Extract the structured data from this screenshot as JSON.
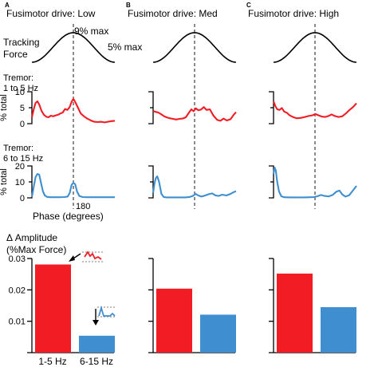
{
  "chart_data": [
    {
      "type": "line",
      "panels": [
        {
          "letter": "A",
          "title": "Fusimotor drive: Low",
          "tracking_label": [
            "Tracking",
            "Force"
          ],
          "force_max_label": "9% max",
          "force_min_label": "5% max",
          "low_band_label": [
            "Tremor:",
            "1 to 5 Hz"
          ],
          "high_band_label": [
            "Tremor:",
            "6 to 15 Hz"
          ],
          "ylabel": "% total",
          "low_ticks": [
            "0",
            "5",
            "10"
          ],
          "high_ticks": [
            "0",
            "10",
            "20"
          ],
          "x_tick_label": "180",
          "xlabel": "Phase (degrees)",
          "low_band": [
            [
              0,
              2.0
            ],
            [
              8,
              4.5
            ],
            [
              16,
              6.5
            ],
            [
              24,
              7.0
            ],
            [
              32,
              6.0
            ],
            [
              42,
              4.0
            ],
            [
              52,
              2.8
            ],
            [
              62,
              2.2
            ],
            [
              72,
              2.0
            ],
            [
              82,
              2.5
            ],
            [
              92,
              2.3
            ],
            [
              104,
              2.6
            ],
            [
              114,
              2.8
            ],
            [
              124,
              3.2
            ],
            [
              134,
              3.5
            ],
            [
              144,
              4.6
            ],
            [
              154,
              4.3
            ],
            [
              164,
              5.2
            ],
            [
              172,
              6.8
            ],
            [
              180,
              7.8
            ],
            [
              190,
              6.5
            ],
            [
              200,
              5.0
            ],
            [
              212,
              3.2
            ],
            [
              226,
              2.3
            ],
            [
              240,
              1.6
            ],
            [
              256,
              1.0
            ],
            [
              270,
              0.6
            ],
            [
              286,
              0.5
            ],
            [
              300,
              0.6
            ],
            [
              316,
              0.4
            ],
            [
              330,
              0.6
            ],
            [
              345,
              0.8
            ],
            [
              360,
              0.9
            ]
          ],
          "high_band": [
            [
              0,
              0.5
            ],
            [
              8,
              7
            ],
            [
              16,
              13
            ],
            [
              24,
              15
            ],
            [
              32,
              14.5
            ],
            [
              40,
              9
            ],
            [
              48,
              4
            ],
            [
              56,
              1.5
            ],
            [
              66,
              0.6
            ],
            [
              80,
              0.4
            ],
            [
              100,
              0.4
            ],
            [
              120,
              0.4
            ],
            [
              140,
              0.5
            ],
            [
              155,
              0.8
            ],
            [
              164,
              3
            ],
            [
              172,
              8
            ],
            [
              180,
              9.5
            ],
            [
              188,
              8.5
            ],
            [
              196,
              4
            ],
            [
              206,
              1.2
            ],
            [
              220,
              0.5
            ],
            [
              240,
              0.4
            ],
            [
              270,
              0.4
            ],
            [
              300,
              0.4
            ],
            [
              330,
              0.4
            ],
            [
              360,
              0.4
            ]
          ]
        },
        {
          "letter": "B",
          "title": "Fusimotor drive: Med",
          "low_band": [
            [
              0,
              4.0
            ],
            [
              10,
              3.7
            ],
            [
              22,
              3.5
            ],
            [
              34,
              3.0
            ],
            [
              46,
              2.4
            ],
            [
              58,
              2.0
            ],
            [
              72,
              1.7
            ],
            [
              86,
              1.5
            ],
            [
              100,
              1.3
            ],
            [
              114,
              1.5
            ],
            [
              128,
              1.6
            ],
            [
              142,
              2.0
            ],
            [
              156,
              3.5
            ],
            [
              166,
              4.5
            ],
            [
              176,
              3.9
            ],
            [
              186,
              4.8
            ],
            [
              196,
              4.2
            ],
            [
              208,
              4.4
            ],
            [
              220,
              5.2
            ],
            [
              232,
              4.3
            ],
            [
              246,
              4.5
            ],
            [
              262,
              2.5
            ],
            [
              278,
              1.2
            ],
            [
              292,
              0.9
            ],
            [
              306,
              1.6
            ],
            [
              320,
              1.0
            ],
            [
              336,
              1.4
            ],
            [
              350,
              2.8
            ],
            [
              360,
              3.6
            ]
          ],
          "high_band": [
            [
              0,
              3
            ],
            [
              6,
              9
            ],
            [
              12,
              12.5
            ],
            [
              18,
              13.5
            ],
            [
              26,
              10
            ],
            [
              36,
              2.5
            ],
            [
              46,
              0.5
            ],
            [
              60,
              0.3
            ],
            [
              80,
              0.3
            ],
            [
              110,
              0.3
            ],
            [
              140,
              0.3
            ],
            [
              160,
              0.6
            ],
            [
              172,
              1.2
            ],
            [
              184,
              2.5
            ],
            [
              196,
              1.5
            ],
            [
              210,
              0.8
            ],
            [
              226,
              1.5
            ],
            [
              242,
              2.3
            ],
            [
              256,
              2.8
            ],
            [
              270,
              1.6
            ],
            [
              284,
              1.2
            ],
            [
              300,
              2.0
            ],
            [
              318,
              1.5
            ],
            [
              336,
              2.5
            ],
            [
              350,
              3.6
            ],
            [
              360,
              4.2
            ]
          ]
        },
        {
          "letter": "C",
          "title": "Fusimotor drive: High",
          "low_band": [
            [
              0,
              7.0
            ],
            [
              8,
              5.5
            ],
            [
              16,
              4.5
            ],
            [
              26,
              4.3
            ],
            [
              36,
              4.9
            ],
            [
              46,
              3.8
            ],
            [
              58,
              3.4
            ],
            [
              70,
              2.6
            ],
            [
              84,
              2.1
            ],
            [
              100,
              1.7
            ],
            [
              118,
              1.8
            ],
            [
              136,
              2.1
            ],
            [
              152,
              2.4
            ],
            [
              168,
              2.6
            ],
            [
              182,
              3.0
            ],
            [
              196,
              2.6
            ],
            [
              210,
              2.2
            ],
            [
              224,
              2.1
            ],
            [
              238,
              2.4
            ],
            [
              252,
              2.9
            ],
            [
              266,
              2.4
            ],
            [
              282,
              2.1
            ],
            [
              298,
              2.3
            ],
            [
              314,
              3.2
            ],
            [
              330,
              4.3
            ],
            [
              345,
              5.2
            ],
            [
              360,
              6.4
            ]
          ],
          "high_band": [
            [
              0,
              15
            ],
            [
              5,
              19
            ],
            [
              10,
              17
            ],
            [
              16,
              10
            ],
            [
              24,
              4
            ],
            [
              34,
              1
            ],
            [
              46,
              0.4
            ],
            [
              70,
              0.3
            ],
            [
              100,
              0.3
            ],
            [
              130,
              0.3
            ],
            [
              160,
              0.4
            ],
            [
              176,
              0.5
            ],
            [
              190,
              1.0
            ],
            [
              206,
              1.8
            ],
            [
              222,
              1.2
            ],
            [
              240,
              0.9
            ],
            [
              256,
              1.8
            ],
            [
              272,
              3.8
            ],
            [
              286,
              4.6
            ],
            [
              298,
              2.2
            ],
            [
              312,
              0.8
            ],
            [
              328,
              1.6
            ],
            [
              344,
              4.5
            ],
            [
              360,
              7.5
            ]
          ]
        }
      ]
    },
    {
      "type": "bar",
      "ylabel": [
        "Δ Amplitude",
        "(%Max Force)"
      ],
      "yticks": [
        "0.01",
        "0.02",
        "0.03"
      ],
      "ylim": [
        0,
        0.03
      ],
      "categories": [
        "1-5 Hz",
        "6-15 Hz"
      ],
      "colors": {
        "low_band": "#f21c24",
        "high_band": "#3f8fd0"
      },
      "panels": [
        {
          "letter": "A",
          "values": [
            0.0281,
            0.0054
          ]
        },
        {
          "letter": "B",
          "values": [
            0.0204,
            0.0121
          ]
        },
        {
          "letter": "C",
          "values": [
            0.0252,
            0.0145
          ]
        }
      ]
    }
  ]
}
